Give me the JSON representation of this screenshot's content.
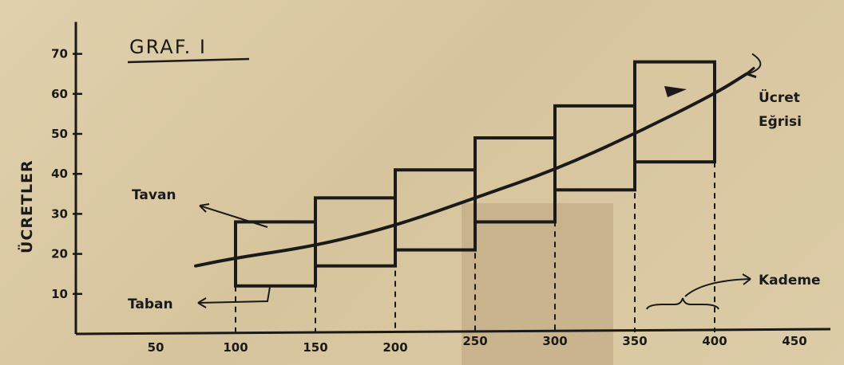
{
  "chart_data": {
    "type": "step",
    "title": "GRAF. I",
    "ylabel": "ÜCRETLER",
    "xlabel": "",
    "x_ticks": [
      50,
      100,
      150,
      200,
      250,
      300,
      350,
      400,
      450
    ],
    "y_ticks": [
      10,
      20,
      30,
      40,
      50,
      60,
      70
    ],
    "xlim": [
      0,
      470
    ],
    "ylim": [
      0,
      78
    ],
    "grades": [
      {
        "x_start": 100,
        "x_end": 150,
        "floor": 12,
        "ceiling": 28
      },
      {
        "x_start": 150,
        "x_end": 200,
        "floor": 17,
        "ceiling": 34
      },
      {
        "x_start": 200,
        "x_end": 250,
        "floor": 21,
        "ceiling": 41
      },
      {
        "x_start": 250,
        "x_end": 300,
        "floor": 28,
        "ceiling": 49
      },
      {
        "x_start": 300,
        "x_end": 350,
        "floor": 36,
        "ceiling": 57
      },
      {
        "x_start": 350,
        "x_end": 400,
        "floor": 43,
        "ceiling": 68
      }
    ],
    "wage_curve": {
      "name": "Ücret Eğrisi",
      "x": [
        75,
        100,
        150,
        200,
        250,
        300,
        350,
        400,
        420
      ],
      "y": [
        17,
        19,
        22,
        27,
        34,
        41,
        50,
        60,
        65
      ]
    },
    "annotations": {
      "ceiling": "Tavan",
      "floor": "Taban",
      "curve_line1": "Ücret",
      "curve_line2": "Eğrisi",
      "grade": "Kademe"
    }
  },
  "colors": {
    "ink": "#1a1a1a",
    "paper": "#dccca7",
    "shadow": "#b59c75"
  }
}
